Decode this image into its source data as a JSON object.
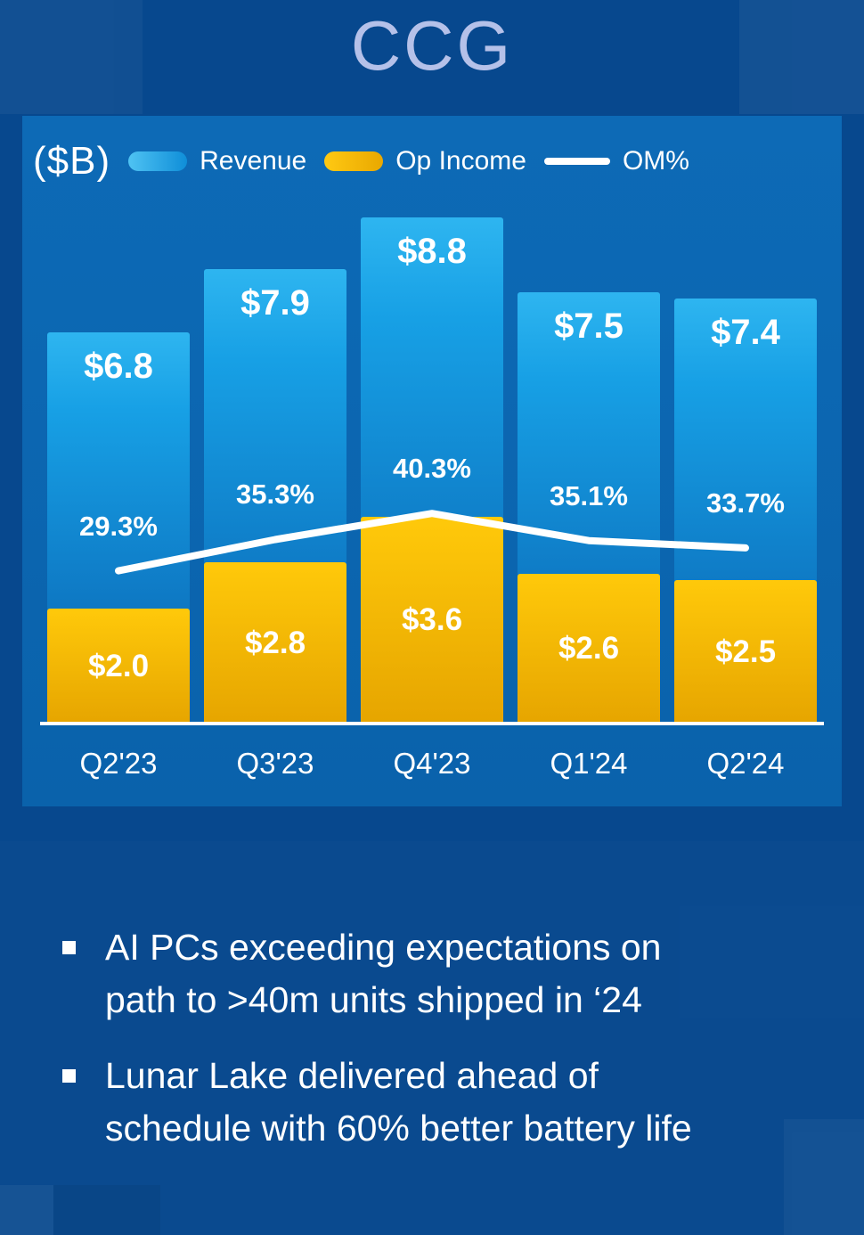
{
  "title": "CCG",
  "colors": {
    "background": "#07488e",
    "chart_panel": "#0b66b1",
    "title_text": "#b5c1e9",
    "revenue_bar": "#17a0e5",
    "op_income_bar": "#ffc107",
    "om_line": "#ffffff"
  },
  "chart_data": {
    "type": "bar+line",
    "units_label": "($B)",
    "legend_position": "top",
    "categories": [
      "Q2'23",
      "Q3'23",
      "Q4'23",
      "Q1'24",
      "Q2'24"
    ],
    "series": [
      {
        "name": "Revenue",
        "type": "bar",
        "unit": "$B",
        "values": [
          6.8,
          7.9,
          8.8,
          7.5,
          7.4
        ],
        "labels": [
          "$6.8",
          "$7.9",
          "$8.8",
          "$7.5",
          "$7.4"
        ],
        "color": "#17a0e5"
      },
      {
        "name": "Op Income",
        "type": "bar",
        "unit": "$B",
        "values": [
          2.0,
          2.8,
          3.6,
          2.6,
          2.5
        ],
        "labels": [
          "$2.0",
          "$2.8",
          "$3.6",
          "$2.6",
          "$2.5"
        ],
        "color": "#ffc107"
      },
      {
        "name": "OM%",
        "type": "line",
        "unit": "%",
        "values": [
          29.3,
          35.3,
          40.3,
          35.1,
          33.7
        ],
        "labels": [
          "29.3%",
          "35.3%",
          "40.3%",
          "35.1%",
          "33.7%"
        ],
        "color": "#ffffff"
      }
    ],
    "ylim": [
      0,
      9.5
    ],
    "grid": false
  },
  "bullets": [
    "AI PCs exceeding expectations on\npath to >40m units shipped in ‘24",
    "Lunar Lake delivered ahead of\nschedule with 60% better battery life"
  ]
}
